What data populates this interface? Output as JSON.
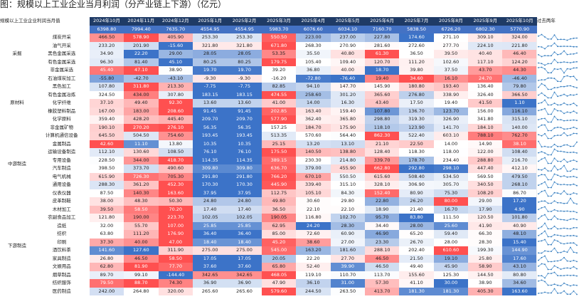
{
  "title": "图：规模以上工业企业当月利润（分产业链上下游）（亿元）",
  "table": {
    "corner_label": "规模以上工业企业利润当月值",
    "trend_label": "过去两年",
    "months": [
      "2024年10月",
      "2024年11月",
      "2024年12月",
      "2025年1月",
      "2025年2月",
      "2025年3月",
      "2025年4月",
      "2025年5月",
      "2025年6月",
      "2025年7月",
      "2025年8月",
      "2025年9月",
      "2025年10月"
    ],
    "totals": [
      "6398.80",
      "7994.40",
      "7635.70",
      "4554.95",
      "4554.95",
      "5983.70",
      "6076.60",
      "6034.10",
      "7160.70",
      "5838.50",
      "6726.20",
      "6802.30",
      "5770.90"
    ],
    "groups": [
      {
        "name": "采掘",
        "rows": [
          {
            "name": "煤炭开采",
            "v": [
              "466.50",
              "578.90",
              "405.90",
              "253.30",
              "253.30",
              "550.50",
              "223.00",
              "237.00",
              "227.80",
              "174.60",
              "271.10",
              "309.10",
              "324.00"
            ]
          },
          {
            "name": "油气开采",
            "v": [
              "233.20",
              "201.90",
              "-15.60",
              "321.80",
              "321.80",
              "671.80",
              "268.30",
              "270.90",
              "281.60",
              "272.60",
              "277.70",
              "224.10",
              "221.80"
            ]
          },
          {
            "name": "黑色金属采选",
            "v": [
              "34.90",
              "22.20",
              "29.00",
              "28.05",
              "28.05",
              "53.35",
              "35.50",
              "40.80",
              "61.30",
              "36.50",
              "39.50",
              "40.40",
              "46.40"
            ]
          },
          {
            "name": "有色金属采选",
            "v": [
              "96.30",
              "81.40",
              "45.10",
              "80.25",
              "80.25",
              "179.75",
              "105.40",
              "109.40",
              "120.70",
              "111.20",
              "102.60",
              "117.10",
              "124.20"
            ]
          },
          {
            "name": "非金属采选",
            "v": [
              "45.40",
              "47.10",
              "38.90",
              "19.70",
              "19.70",
              "39.20",
              "36.80",
              "40.00",
              "18.70",
              "39.80",
              "37.50",
              "43.70",
              "44.30"
            ]
          }
        ]
      },
      {
        "name": "原材料",
        "rows": [
          {
            "name": "石油煤炭加工",
            "v": [
              "-55.80",
              "-42.70",
              "-43.10",
              "-9.30",
              "-9.30",
              "-16.20",
              "-72.80",
              "-76.40",
              "19.40",
              "34.60",
              "16.10",
              "24.70",
              "-46.40"
            ]
          },
          {
            "name": "黑色加工",
            "v": [
              "107.80",
              "311.80",
              "213.30",
              "-7.75",
              "-7.75",
              "82.85",
              "94.10",
              "147.70",
              "145.90",
              "180.80",
              "193.40",
              "136.40",
              "79.80"
            ]
          },
          {
            "name": "有色金属冶炼",
            "v": [
              "324.50",
              "434.00",
              "307.80",
              "183.15",
              "183.15",
              "474.55",
              "258.60",
              "301.20",
              "365.60",
              "276.80",
              "338.90",
              "326.40",
              "366.50"
            ]
          },
          {
            "name": "化学纤维",
            "v": [
              "37.10",
              "49.40",
              "92.30",
              "13.60",
              "13.60",
              "41.00",
              "14.00",
              "16.30",
              "43.40",
              "17.50",
              "19.40",
              "41.50",
              "1.10"
            ]
          },
          {
            "name": "橡胶塑料制品",
            "v": [
              "167.00",
              "183.00",
              "208.60",
              "91.45",
              "91.45",
              "202.85",
              "163.40",
              "159.40",
              "107.80",
              "136.70",
              "123.70",
              "156.00",
              "116.10"
            ]
          },
          {
            "name": "化学原料",
            "v": [
              "359.40",
              "428.20",
              "445.40",
              "209.70",
              "209.70",
              "577.90",
              "362.40",
              "365.80",
              "298.80",
              "319.30",
              "326.90",
              "341.80",
              "315.10"
            ]
          },
          {
            "name": "非金属矿物",
            "v": [
              "190.10",
              "270.20",
              "276.10",
              "56.35",
              "56.35",
              "157.25",
              "184.70",
              "175.90",
              "118.10",
              "123.90",
              "141.70",
              "184.10",
              "140.00"
            ]
          }
        ]
      },
      {
        "name": "中游制造",
        "rows": [
          {
            "name": "计算机通信设备",
            "v": [
              "645.50",
              "504.50",
              "754.60",
              "193.45",
              "193.45",
              "513.35",
              "570.60",
              "564.40",
              "862.30",
              "522.40",
              "603.10",
              "788.10",
              "762.70"
            ]
          },
          {
            "name": "金属制品",
            "v": [
              "42.60",
              "11.10",
              "13.80",
              "10.35",
              "10.35",
              "25.15",
              "13.20",
              "13.10",
              "21.10",
              "22.50",
              "14.00",
              "14.90",
              "38.10"
            ]
          },
          {
            "name": "运输设备制造",
            "v": [
              "112.10",
              "130.60",
              "108.50",
              "76.10",
              "76.10",
              "175.50",
              "140.50",
              "138.80",
              "128.40",
              "118.30",
              "118.00",
              "122.00",
              "108.40"
            ]
          },
          {
            "name": "专用设备",
            "v": [
              "228.50",
              "344.00",
              "418.70",
              "114.35",
              "114.35",
              "389.15",
              "230.30",
              "214.80",
              "339.70",
              "178.70",
              "234.40",
              "288.80",
              "216.70"
            ]
          },
          {
            "name": "汽车制造",
            "v": [
              "398.50",
              "373.70",
              "490.60",
              "309.80",
              "309.80",
              "636.70",
              "379.00",
              "455.90",
              "662.80",
              "292.80",
              "298.10",
              "447.40",
              "412.10"
            ]
          },
          {
            "name": "电气机械",
            "v": [
              "615.90",
              "726.30",
              "705.30",
              "291.80",
              "291.80",
              "766.20",
              "670.10",
              "550.50",
              "615.60",
              "508.40",
              "534.50",
              "569.50",
              "479.50"
            ]
          },
          {
            "name": "通用设备",
            "v": [
              "288.30",
              "361.20",
              "452.30",
              "170.30",
              "170.30",
              "445.90",
              "339.40",
              "315.10",
              "328.10",
              "306.90",
              "305.70",
              "340.50",
              "268.10"
            ]
          },
          {
            "name": "仪表仪器",
            "v": [
              "87.50",
              "140.30",
              "163.60",
              "37.95",
              "37.95",
              "112.75",
              "105.10",
              "84.30",
              "152.40",
              "80.90",
              "75.30",
              "108.20",
              "86.70"
            ]
          }
        ]
      },
      {
        "name": "下游制造",
        "rows": [
          {
            "name": "皮革制鞋",
            "v": [
              "38.00",
              "48.30",
              "50.30",
              "24.80",
              "24.80",
              "49.80",
              "30.60",
              "29.80",
              "22.80",
              "26.20",
              "80.00",
              "29.00",
              "17.20"
            ]
          },
          {
            "name": "木材加工",
            "v": [
              "39.50",
              "58.50",
              "70.20",
              "17.40",
              "17.40",
              "36.50",
              "22.10",
              "22.10",
              "18.90",
              "21.40",
              "16.70",
              "17.90",
              "4.90"
            ]
          },
          {
            "name": "农副食品加工",
            "v": [
              "121.80",
              "190.00",
              "223.70",
              "102.05",
              "102.05",
              "190.05",
              "116.80",
              "102.70",
              "95.70",
              "83.80",
              "111.50",
              "120.50",
              "101.80"
            ]
          },
          {
            "name": "造纸",
            "v": [
              "32.00",
              "55.70",
              "107.00",
              "25.85",
              "25.85",
              "62.95",
              "24.20",
              "28.30",
              "34.40",
              "28.00",
              "25.60",
              "41.90",
              "40.90"
            ]
          },
          {
            "name": "纺织",
            "v": [
              "63.80",
              "111.20",
              "176.90",
              "36.40",
              "36.40",
              "85.00",
              "72.60",
              "60.90",
              "46.90",
              "65.20",
              "59.40",
              "66.30",
              "48.10"
            ]
          },
          {
            "name": "印刷",
            "v": [
              "37.30",
              "40.00",
              "47.00",
              "18.40",
              "18.40",
              "45.20",
              "38.60",
              "27.00",
              "23.30",
              "26.70",
              "28.00",
              "28.30",
              "15.40"
            ]
          },
          {
            "name": "酒饮料茶",
            "v": [
              "141.60",
              "127.60",
              "311.90",
              "275.00",
              "275.00",
              "545.00",
              "163.20",
              "181.60",
              "288.10",
              "202.40",
              "610.60",
              "199.30",
              "144.90"
            ]
          },
          {
            "name": "家具制造",
            "v": [
              "26.80",
              "46.50",
              "58.50",
              "17.05",
              "17.05",
              "20.05",
              "22.20",
              "27.70",
              "46.50",
              "21.50",
              "19.10",
              "25.80",
              "17.60"
            ]
          },
          {
            "name": "文娱用品",
            "v": [
              "62.80",
              "81.90",
              "77.70",
              "37.60",
              "37.60",
              "65.80",
              "52.40",
              "39.90",
              "46.50",
              "49.40",
              "45.90",
              "58.90",
              "43.10"
            ]
          },
          {
            "name": "烟草制品",
            "v": [
              "89.70",
              "99.10",
              "-144.40",
              "342.65",
              "342.65",
              "468.05",
              "119.10",
              "110.70",
              "113.70",
              "155.60",
              "125.30",
              "144.50",
              "80.80"
            ]
          },
          {
            "name": "纺织服饰",
            "v": [
              "79.50",
              "88.70",
              "74.30",
              "36.90",
              "36.90",
              "47.90",
              "36.10",
              "31.00",
              "57.30",
              "41.10",
              "30.00",
              "38.90",
              "34.60"
            ]
          },
          {
            "name": "医药制造",
            "v": [
              "242.00",
              "264.80",
              "320.00",
              "265.60",
              "265.60",
              "579.60",
              "244.50",
              "263.50",
              "413.70",
              "181.30",
              "181.30",
              "405.30",
              "163.60"
            ]
          }
        ]
      }
    ]
  }
}
